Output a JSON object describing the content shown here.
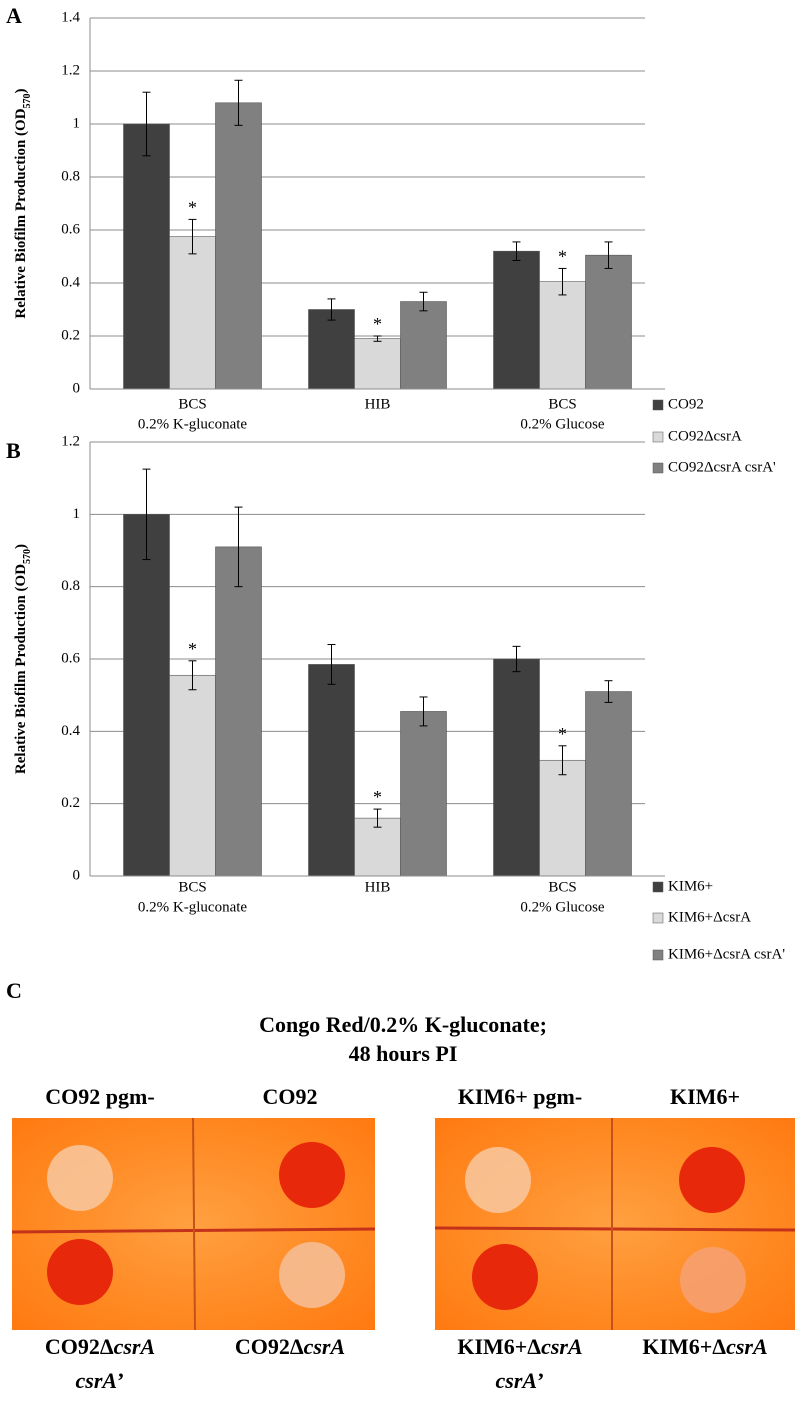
{
  "chart_data": [
    {
      "type": "bar",
      "label": "A",
      "ylabel": [
        "Relative Biofilm Production (OD",
        "570",
        ")"
      ],
      "categories": [
        [
          "BCS",
          "0.2% K-gluconate"
        ],
        [
          "HIB"
        ],
        [
          "BCS",
          "0.2% Glucose"
        ]
      ],
      "series": [
        {
          "name": "CO92",
          "color": "#404040",
          "values": [
            1.0,
            0.3,
            0.52
          ],
          "errors": [
            0.12,
            0.04,
            0.035
          ]
        },
        {
          "name": "CO92ΔcsrA",
          "color": "#d9d9d9",
          "values": [
            0.575,
            0.19,
            0.405
          ],
          "errors": [
            0.065,
            0.01,
            0.05
          ],
          "annotations": [
            "*",
            "*",
            "*"
          ]
        },
        {
          "name": "CO92ΔcsrA csrA'",
          "color": "#808080",
          "values": [
            1.08,
            0.33,
            0.505
          ],
          "errors": [
            0.085,
            0.035,
            0.05
          ]
        }
      ],
      "ylim": [
        0,
        1.4
      ],
      "yticks": [
        0,
        0.2,
        0.4,
        0.6,
        0.8,
        1,
        1.2,
        1.4
      ],
      "grid": true,
      "legend": "right"
    },
    {
      "type": "bar",
      "label": "B",
      "ylabel": [
        "Relative Biofilm Production (OD",
        "570",
        ")"
      ],
      "categories": [
        [
          "BCS",
          "0.2% K-gluconate"
        ],
        [
          "HIB"
        ],
        [
          "BCS",
          "0.2% Glucose"
        ]
      ],
      "series": [
        {
          "name": "KIM6+",
          "color": "#404040",
          "values": [
            1.0,
            0.585,
            0.6
          ],
          "errors": [
            0.125,
            0.055,
            0.035
          ]
        },
        {
          "name": "KIM6+ΔcsrA",
          "color": "#d9d9d9",
          "values": [
            0.555,
            0.16,
            0.32
          ],
          "errors": [
            0.04,
            0.025,
            0.04
          ],
          "annotations": [
            "*",
            "*",
            "*"
          ]
        },
        {
          "name": "KIM6+ΔcsrA csrA'",
          "color": "#808080",
          "values": [
            0.91,
            0.455,
            0.51
          ],
          "errors": [
            0.11,
            0.04,
            0.03
          ]
        }
      ],
      "ylim": [
        0,
        1.2
      ],
      "yticks": [
        0,
        0.2,
        0.4,
        0.6,
        0.8,
        1,
        1.2
      ],
      "grid": true,
      "legend": "right"
    }
  ],
  "panel_c": {
    "label": "C",
    "title": [
      "Congo Red/0.2% K-gluconate;",
      "48 hours PI"
    ],
    "top_labels": [
      "CO92 pgm-",
      "CO92",
      "KIM6+ pgm-",
      "KIM6+"
    ],
    "bottom_labels": [
      [
        [
          {
            "text": "CO92Δ"
          },
          {
            "text": "csrA",
            "italic": true
          }
        ],
        [
          {
            "text": "csrA",
            "italic": true
          },
          {
            "text": "’"
          }
        ]
      ],
      [
        [
          {
            "text": "CO92Δ"
          },
          {
            "text": "csrA",
            "italic": true
          }
        ]
      ],
      [
        [
          {
            "text": "KIM6+Δ"
          },
          {
            "text": "csrA",
            "italic": true
          }
        ],
        [
          {
            "text": "csrA",
            "italic": true
          },
          {
            "text": "’"
          }
        ]
      ],
      [
        [
          {
            "text": "KIM6+Δ"
          },
          {
            "text": "csrA",
            "italic": true
          }
        ]
      ]
    ]
  }
}
